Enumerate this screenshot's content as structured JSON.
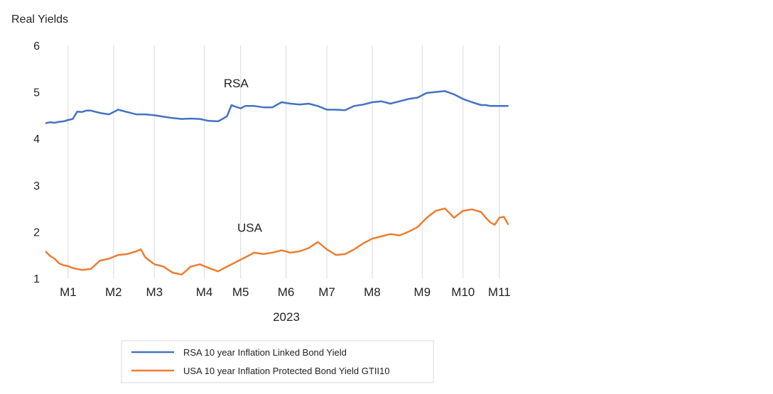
{
  "chart_data": {
    "type": "line",
    "title": "",
    "ylabel": "Real Yields",
    "xlabel": "2023",
    "ylim": [
      1,
      6
    ],
    "yticks": [
      1,
      2,
      3,
      4,
      5,
      6
    ],
    "grid": "vertical",
    "x_ticks": [
      "M1",
      "M2",
      "M3",
      "M4",
      "M5",
      "M6",
      "M7",
      "M8",
      "M9",
      "M10",
      "M11"
    ],
    "x_tick_pos": [
      0.5,
      1.5,
      2.4,
      3.5,
      4.3,
      5.3,
      6.2,
      7.2,
      8.3,
      9.2,
      10.0
    ],
    "x_range": [
      0,
      10.3
    ],
    "series": [
      {
        "name": "RSA 10 year Inflation Linked Bond Yield",
        "label": "RSA",
        "color": "#4472C4",
        "x": [
          0,
          0.1,
          0.2,
          0.3,
          0.4,
          0.5,
          0.6,
          0.7,
          0.8,
          0.9,
          1.0,
          1.2,
          1.4,
          1.6,
          1.8,
          2.0,
          2.2,
          2.4,
          2.6,
          2.8,
          3.0,
          3.2,
          3.4,
          3.6,
          3.8,
          3.9,
          4.0,
          4.1,
          4.2,
          4.3,
          4.4,
          4.6,
          4.8,
          5.0,
          5.2,
          5.4,
          5.6,
          5.8,
          6.0,
          6.2,
          6.4,
          6.6,
          6.8,
          7.0,
          7.2,
          7.4,
          7.6,
          7.8,
          8.0,
          8.2,
          8.4,
          8.6,
          8.8,
          9.0,
          9.2,
          9.4,
          9.6,
          9.7,
          9.8,
          9.9,
          10.0,
          10.1,
          10.2
        ],
        "values": [
          4.33,
          4.35,
          4.34,
          4.36,
          4.37,
          4.4,
          4.42,
          4.58,
          4.57,
          4.6,
          4.6,
          4.55,
          4.52,
          4.62,
          4.57,
          4.52,
          4.52,
          4.5,
          4.47,
          4.44,
          4.42,
          4.43,
          4.42,
          4.38,
          4.37,
          4.42,
          4.48,
          4.72,
          4.68,
          4.65,
          4.7,
          4.7,
          4.67,
          4.67,
          4.78,
          4.75,
          4.73,
          4.75,
          4.7,
          4.62,
          4.62,
          4.61,
          4.7,
          4.73,
          4.78,
          4.8,
          4.75,
          4.8,
          4.85,
          4.88,
          4.98,
          5.0,
          5.02,
          4.95,
          4.85,
          4.78,
          4.72,
          4.72,
          4.7,
          4.7,
          4.7,
          4.7,
          4.7
        ]
      },
      {
        "name": "USA 10 year Inflation Protected Bond Yield GTII10",
        "label": "USA",
        "color": "#ED7D31",
        "x": [
          0,
          0.1,
          0.2,
          0.3,
          0.4,
          0.5,
          0.6,
          0.8,
          1.0,
          1.2,
          1.4,
          1.6,
          1.8,
          2.0,
          2.1,
          2.2,
          2.4,
          2.6,
          2.8,
          3.0,
          3.2,
          3.4,
          3.6,
          3.8,
          4.0,
          4.2,
          4.4,
          4.6,
          4.8,
          5.0,
          5.2,
          5.4,
          5.6,
          5.8,
          6.0,
          6.2,
          6.4,
          6.6,
          6.8,
          7.0,
          7.2,
          7.4,
          7.6,
          7.8,
          8.0,
          8.2,
          8.4,
          8.6,
          8.8,
          9.0,
          9.2,
          9.4,
          9.6,
          9.7,
          9.8,
          9.9,
          10.0,
          10.1,
          10.2
        ],
        "values": [
          1.58,
          1.48,
          1.42,
          1.32,
          1.28,
          1.26,
          1.22,
          1.18,
          1.2,
          1.38,
          1.42,
          1.5,
          1.52,
          1.58,
          1.62,
          1.45,
          1.3,
          1.25,
          1.12,
          1.08,
          1.25,
          1.3,
          1.22,
          1.15,
          1.25,
          1.35,
          1.45,
          1.55,
          1.52,
          1.55,
          1.6,
          1.55,
          1.58,
          1.65,
          1.78,
          1.62,
          1.5,
          1.52,
          1.62,
          1.75,
          1.85,
          1.9,
          1.95,
          1.92,
          2.0,
          2.1,
          2.3,
          2.45,
          2.5,
          2.3,
          2.45,
          2.48,
          2.42,
          2.3,
          2.2,
          2.15,
          2.3,
          2.32,
          2.15
        ]
      }
    ],
    "annotations": [
      {
        "text": "RSA",
        "x": 4.2,
        "y": 5.1
      },
      {
        "text": "USA",
        "x": 4.5,
        "y": 2.0
      }
    ],
    "legend": {
      "placement": "bottom-center",
      "entries": [
        "RSA 10 year Inflation Linked Bond Yield",
        "USA 10 year Inflation Protected Bond Yield GTII10"
      ]
    }
  }
}
